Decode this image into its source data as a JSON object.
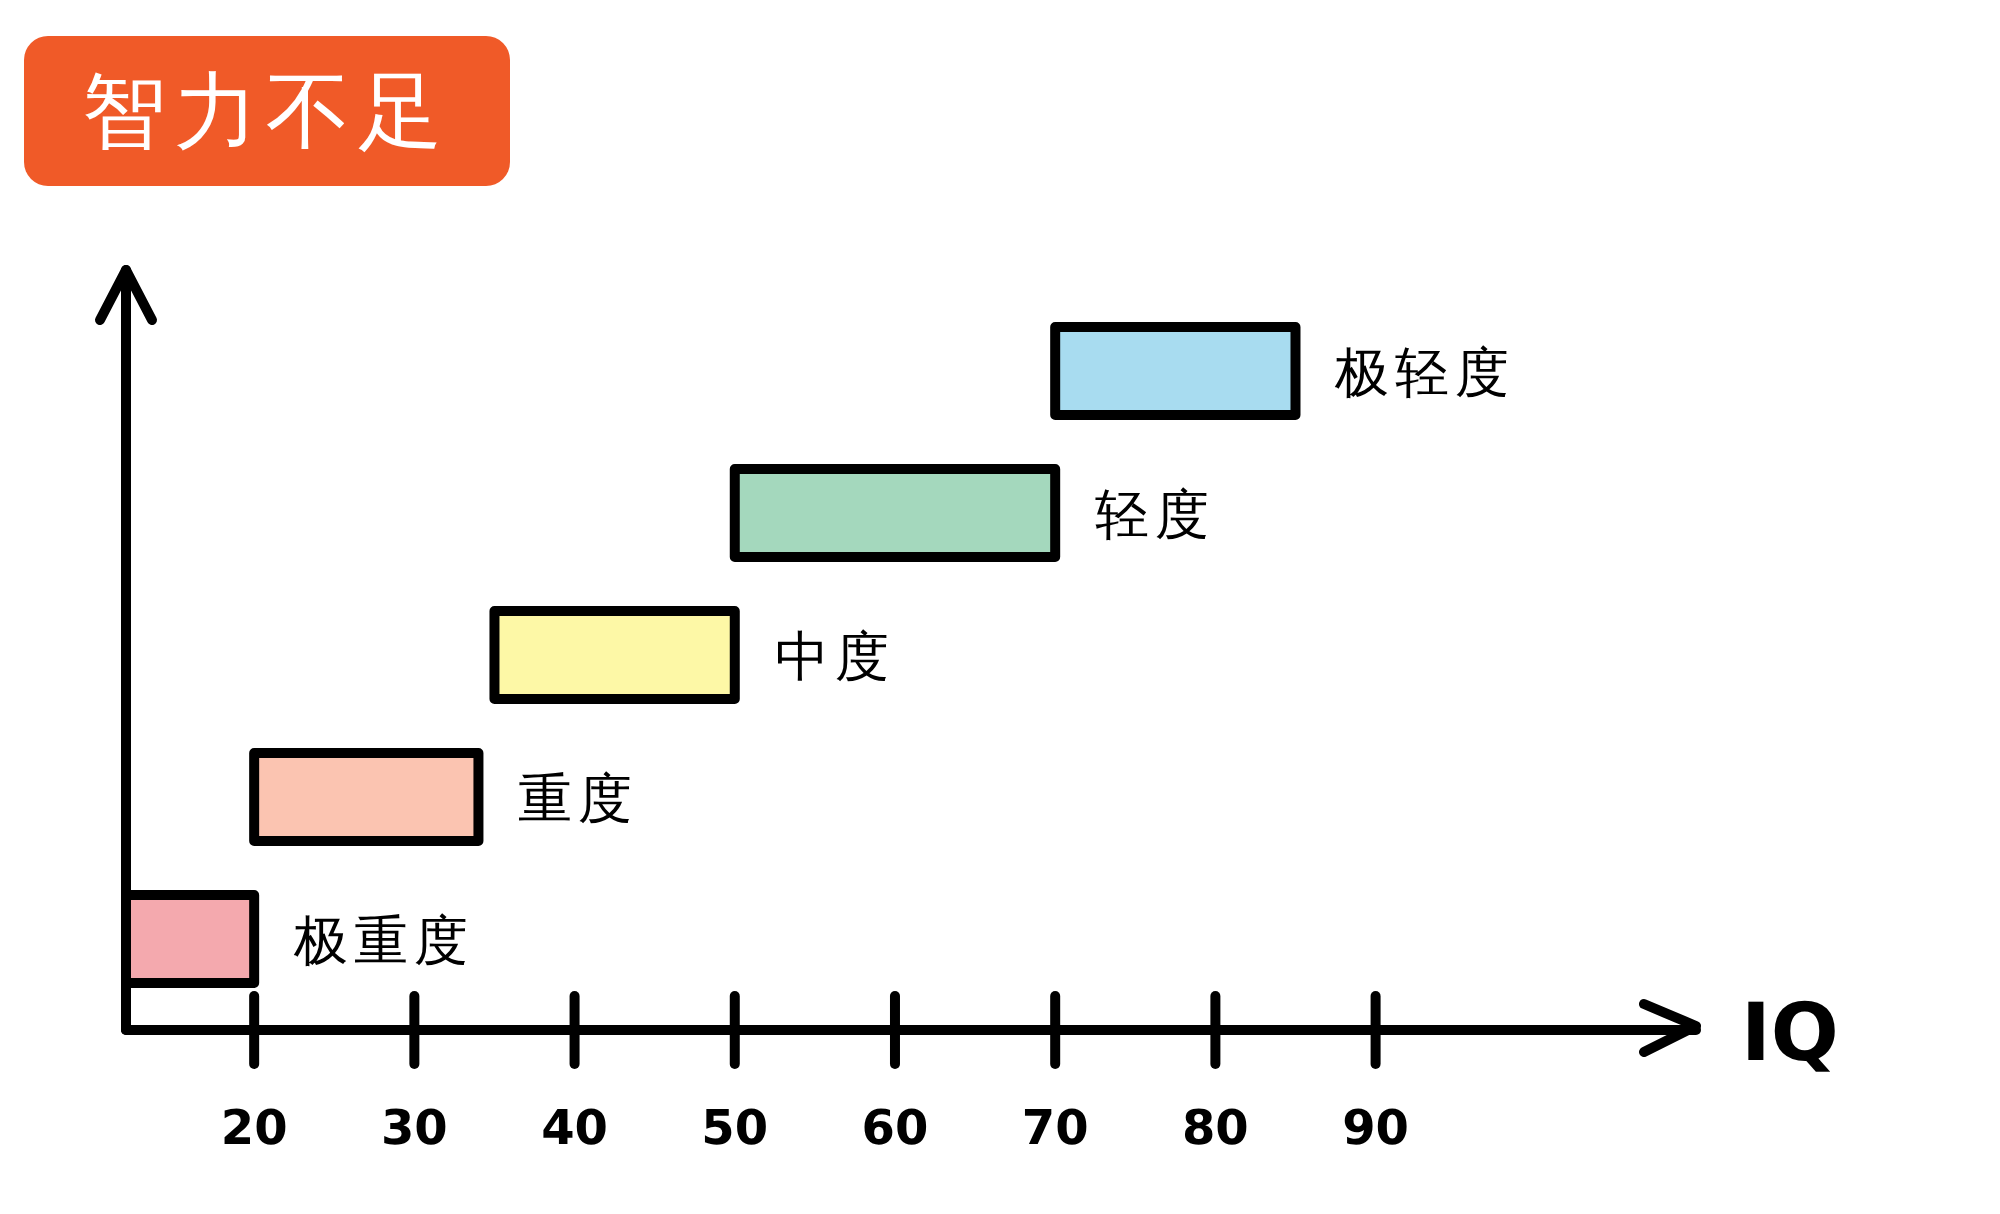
{
  "chart_data": {
    "type": "bar",
    "orientation": "horizontal",
    "title": "智力不足",
    "xlabel": "IQ",
    "categories": [
      "极轻度",
      "轻度",
      "中度",
      "重度",
      "极重度"
    ],
    "base": [
      70,
      50,
      35,
      20,
      12
    ],
    "values": [
      15,
      20,
      15,
      14,
      8
    ],
    "colors": [
      "#a8dcf0",
      "#a4d8bd",
      "#fdf8a6",
      "#fbc4b1",
      "#f4a9ae"
    ],
    "xlim": [
      12,
      110
    ],
    "xticks": [
      20,
      30,
      40,
      50,
      60,
      70,
      80,
      90
    ]
  }
}
